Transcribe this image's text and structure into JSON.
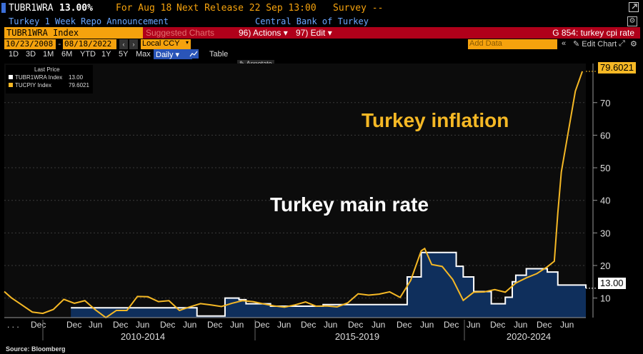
{
  "header": {
    "ticker": "TUBR1WRA",
    "price": "13.00%",
    "for_label": "For Aug 18",
    "next_release": "Next Release 22 Sep 13:00",
    "survey": "Survey --",
    "description": "Turkey 1 Week Repo Announcement",
    "source_name": "Central Bank of Turkey"
  },
  "toolbar": {
    "security": "TUBR1WRA Index",
    "suggested": "Suggested Charts",
    "actions": "96) Actions ▾",
    "edit": "97) Edit ▾",
    "chart_title": "G 854: turkey cpi rate",
    "date_from": "10/23/2008",
    "date_to": "08/18/2022",
    "currency": "Local CCY",
    "add_data": "Add Data",
    "edit_chart": "Edit Chart",
    "periods": [
      "1D",
      "3D",
      "1M",
      "6M",
      "YTD",
      "1Y",
      "5Y",
      "Max"
    ],
    "frequency": "Daily ▾",
    "table": "Table",
    "annotate": "Annotate"
  },
  "legend": {
    "title": "Last Price",
    "items": [
      {
        "name": "TUBR1WRA Index",
        "value": "13.00",
        "color": "#ffffff"
      },
      {
        "name": "TUCPIY Index",
        "value": "79.6021",
        "color": "#f5b825"
      }
    ]
  },
  "annotations": {
    "inflation": "Turkey inflation",
    "rate": "Turkey main rate"
  },
  "source": "Source: Bloomberg",
  "chart_data": {
    "type": "line",
    "x_range": [
      "2008-10",
      "2022-08"
    ],
    "ylim": [
      4,
      82
    ],
    "y_ticks": [
      10,
      20,
      30,
      40,
      50,
      60,
      70
    ],
    "x_tick_labels": [
      ". . .",
      "Dec",
      "Dec",
      "Jun",
      "Dec",
      "Jun",
      "Dec",
      "Jun",
      "Dec",
      "Jun",
      "Dec",
      "Jun",
      "Dec",
      "Jun",
      "Dec",
      "Jun",
      "Dec",
      "Jun",
      "Dec",
      "Jun",
      "Dec",
      "Jun",
      "Dec",
      "Jun"
    ],
    "period_labels": [
      "2010-2014",
      "2015-2019",
      "2020-2024"
    ],
    "series": [
      {
        "name": "TUCPIY Index",
        "color": "#f5b825",
        "last": "79.6021",
        "points": [
          [
            "2008-10",
            12.0
          ],
          [
            "2008-12",
            10.1
          ],
          [
            "2009-03",
            7.9
          ],
          [
            "2009-06",
            5.7
          ],
          [
            "2009-09",
            5.3
          ],
          [
            "2009-12",
            6.5
          ],
          [
            "2010-03",
            9.6
          ],
          [
            "2010-06",
            8.4
          ],
          [
            "2010-09",
            9.2
          ],
          [
            "2010-12",
            6.4
          ],
          [
            "2011-03",
            4.0
          ],
          [
            "2011-06",
            6.2
          ],
          [
            "2011-09",
            6.2
          ],
          [
            "2011-12",
            10.5
          ],
          [
            "2012-03",
            10.4
          ],
          [
            "2012-06",
            8.9
          ],
          [
            "2012-09",
            9.2
          ],
          [
            "2012-12",
            6.2
          ],
          [
            "2013-03",
            7.3
          ],
          [
            "2013-06",
            8.3
          ],
          [
            "2013-09",
            7.9
          ],
          [
            "2013-12",
            7.4
          ],
          [
            "2014-03",
            8.4
          ],
          [
            "2014-06",
            9.2
          ],
          [
            "2014-09",
            8.9
          ],
          [
            "2014-12",
            8.2
          ],
          [
            "2015-03",
            7.6
          ],
          [
            "2015-06",
            7.2
          ],
          [
            "2015-09",
            7.9
          ],
          [
            "2015-12",
            8.8
          ],
          [
            "2016-03",
            7.5
          ],
          [
            "2016-06",
            7.6
          ],
          [
            "2016-09",
            7.3
          ],
          [
            "2016-12",
            8.5
          ],
          [
            "2017-03",
            11.3
          ],
          [
            "2017-06",
            10.9
          ],
          [
            "2017-09",
            11.2
          ],
          [
            "2017-12",
            11.9
          ],
          [
            "2018-03",
            10.2
          ],
          [
            "2018-06",
            15.4
          ],
          [
            "2018-09",
            24.5
          ],
          [
            "2018-10",
            25.2
          ],
          [
            "2018-12",
            20.3
          ],
          [
            "2019-03",
            19.7
          ],
          [
            "2019-06",
            15.7
          ],
          [
            "2019-09",
            9.3
          ],
          [
            "2019-12",
            11.8
          ],
          [
            "2020-03",
            11.9
          ],
          [
            "2020-06",
            12.6
          ],
          [
            "2020-09",
            11.8
          ],
          [
            "2020-12",
            14.6
          ],
          [
            "2021-03",
            16.2
          ],
          [
            "2021-06",
            17.5
          ],
          [
            "2021-09",
            19.6
          ],
          [
            "2021-11",
            21.3
          ],
          [
            "2021-12",
            36.1
          ],
          [
            "2022-01",
            48.7
          ],
          [
            "2022-03",
            61.1
          ],
          [
            "2022-05",
            73.5
          ],
          [
            "2022-07",
            79.6
          ]
        ]
      },
      {
        "name": "TUBR1WRA Index",
        "color": "#ffffff",
        "last": "13.00",
        "points": [
          [
            "2010-05",
            7.0
          ],
          [
            "2013-05",
            4.5
          ],
          [
            "2014-01",
            10.0
          ],
          [
            "2014-05",
            9.5
          ],
          [
            "2014-07",
            8.25
          ],
          [
            "2015-02",
            7.5
          ],
          [
            "2016-03",
            7.5
          ],
          [
            "2016-05",
            8.0
          ],
          [
            "2016-11",
            8.0
          ],
          [
            "2017-12",
            8.0
          ],
          [
            "2018-05",
            16.5
          ],
          [
            "2018-09",
            24.0
          ],
          [
            "2019-07",
            19.75
          ],
          [
            "2019-09",
            16.5
          ],
          [
            "2019-12",
            12.0
          ],
          [
            "2020-05",
            8.25
          ],
          [
            "2020-09",
            10.25
          ],
          [
            "2020-11",
            15.0
          ],
          [
            "2020-12",
            17.0
          ],
          [
            "2021-03",
            19.0
          ],
          [
            "2021-09",
            18.0
          ],
          [
            "2021-12",
            14.0
          ],
          [
            "2022-07",
            14.0
          ],
          [
            "2022-08",
            13.0
          ]
        ]
      }
    ]
  }
}
